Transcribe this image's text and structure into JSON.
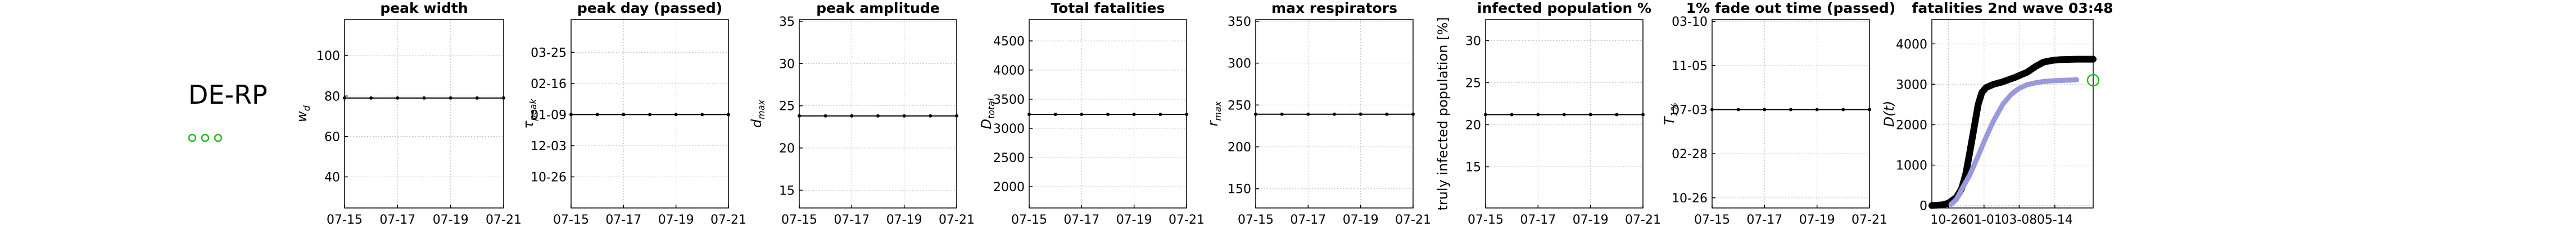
{
  "header": {
    "label": "DE-RP"
  },
  "chart_data": [
    {
      "type": "line",
      "title": "peak width",
      "ylabel": "w",
      "ylabel_sub": "d",
      "grid": true,
      "xlim": [
        15,
        21
      ],
      "xticks": [
        {
          "value": 15,
          "label": "07-15"
        },
        {
          "value": 17,
          "label": "07-17"
        },
        {
          "value": 19,
          "label": "07-19"
        },
        {
          "value": 21,
          "label": "07-21"
        }
      ],
      "ylim": [
        24.6,
        117.8
      ],
      "yticks": [
        40,
        60,
        80,
        100
      ],
      "series": [
        {
          "color": "#000000",
          "marker": true,
          "x": [
            15,
            16,
            17,
            18,
            19,
            20,
            21
          ],
          "values": [
            79,
            79,
            79,
            79,
            79,
            79,
            79
          ]
        }
      ]
    },
    {
      "type": "line",
      "title": "peak day (passed)",
      "ylabel": "τ",
      "ylabel_sub": "peak",
      "grid": true,
      "xlim": [
        15,
        21
      ],
      "xticks": [
        {
          "value": 15,
          "label": "07-15"
        },
        {
          "value": 17,
          "label": "07-17"
        },
        {
          "value": 19,
          "label": "07-19"
        },
        {
          "value": 21,
          "label": "07-21"
        }
      ],
      "ylim": [
        -1,
        5.05
      ],
      "yticks": [
        {
          "value": 0,
          "label": "10-26"
        },
        {
          "value": 1,
          "label": "12-03"
        },
        {
          "value": 2,
          "label": "01-09"
        },
        {
          "value": 3,
          "label": "02-16"
        },
        {
          "value": 4,
          "label": "03-25"
        }
      ],
      "series": [
        {
          "color": "#000000",
          "marker": true,
          "x": [
            15,
            16,
            17,
            18,
            19,
            20,
            21
          ],
          "values": [
            2,
            2,
            2,
            2,
            2,
            2,
            2
          ]
        }
      ]
    },
    {
      "type": "line",
      "title": "peak amplitude",
      "ylabel": "d",
      "ylabel_sub": "max",
      "grid": true,
      "xlim": [
        15,
        21
      ],
      "xticks": [
        {
          "value": 15,
          "label": "07-15"
        },
        {
          "value": 17,
          "label": "07-17"
        },
        {
          "value": 19,
          "label": "07-19"
        },
        {
          "value": 21,
          "label": "07-21"
        }
      ],
      "ylim": [
        12.9,
        35.2
      ],
      "yticks": [
        15,
        20,
        25,
        30,
        35
      ],
      "series": [
        {
          "color": "#000000",
          "marker": true,
          "x": [
            15,
            16,
            17,
            18,
            19,
            20,
            21
          ],
          "values": [
            23.8,
            23.8,
            23.8,
            23.8,
            23.8,
            23.8,
            23.8
          ]
        }
      ]
    },
    {
      "type": "line",
      "title": "Total fatalities",
      "ylabel": "D",
      "ylabel_sub": "total",
      "grid": true,
      "xlim": [
        15,
        21
      ],
      "xticks": [
        {
          "value": 15,
          "label": "07-15"
        },
        {
          "value": 17,
          "label": "07-17"
        },
        {
          "value": 19,
          "label": "07-19"
        },
        {
          "value": 21,
          "label": "07-21"
        }
      ],
      "ylim": [
        1635,
        4865
      ],
      "yticks": [
        2000,
        2500,
        3000,
        3500,
        4000,
        4500
      ],
      "series": [
        {
          "color": "#000000",
          "marker": true,
          "x": [
            15,
            16,
            17,
            18,
            19,
            20,
            21
          ],
          "values": [
            3240,
            3240,
            3240,
            3240,
            3240,
            3240,
            3240
          ]
        }
      ]
    },
    {
      "type": "line",
      "title": "max respirators",
      "ylabel": "r",
      "ylabel_sub": "max",
      "grid": true,
      "xlim": [
        15,
        21
      ],
      "xticks": [
        {
          "value": 15,
          "label": "07-15"
        },
        {
          "value": 17,
          "label": "07-17"
        },
        {
          "value": 19,
          "label": "07-19"
        },
        {
          "value": 21,
          "label": "07-21"
        }
      ],
      "ylim": [
        127,
        352
      ],
      "yticks": [
        150,
        200,
        250,
        300,
        350
      ],
      "series": [
        {
          "color": "#000000",
          "marker": true,
          "x": [
            15,
            16,
            17,
            18,
            19,
            20,
            21
          ],
          "values": [
            239,
            239,
            239,
            239,
            239,
            239,
            239
          ]
        }
      ]
    },
    {
      "type": "line",
      "title": "infected population %",
      "ylabel": "truly infected population [%]",
      "grid": true,
      "xlim": [
        15,
        21
      ],
      "xticks": [
        {
          "value": 15,
          "label": "07-15"
        },
        {
          "value": 17,
          "label": "07-17"
        },
        {
          "value": 19,
          "label": "07-19"
        },
        {
          "value": 21,
          "label": "07-21"
        }
      ],
      "ylim": [
        10.1,
        32.5
      ],
      "yticks": [
        15,
        20,
        25,
        30
      ],
      "series": [
        {
          "color": "#000000",
          "marker": true,
          "x": [
            15,
            16,
            17,
            18,
            19,
            20,
            21
          ],
          "values": [
            21.2,
            21.2,
            21.2,
            21.2,
            21.2,
            21.2,
            21.2
          ]
        }
      ]
    },
    {
      "type": "line",
      "title": "1% fade out time (passed)",
      "ylabel": "T",
      "ylabel_sub": "1%",
      "grid": true,
      "xlim": [
        15,
        21
      ],
      "xticks": [
        {
          "value": 15,
          "label": "07-15"
        },
        {
          "value": 17,
          "label": "07-17"
        },
        {
          "value": 19,
          "label": "07-19"
        },
        {
          "value": 21,
          "label": "07-21"
        }
      ],
      "ylim": [
        -0.23,
        4.04
      ],
      "yticks": [
        {
          "value": 0,
          "label": "10-26"
        },
        {
          "value": 1,
          "label": "02-28"
        },
        {
          "value": 2,
          "label": "07-03"
        },
        {
          "value": 3,
          "label": "11-05"
        },
        {
          "value": 4,
          "label": "03-10"
        }
      ],
      "series": [
        {
          "color": "#000000",
          "marker": true,
          "x": [
            15,
            16,
            17,
            18,
            19,
            20,
            21
          ],
          "values": [
            2,
            2,
            2,
            2,
            2,
            2,
            2
          ]
        }
      ]
    },
    {
      "type": "line",
      "title": "fatalities 2nd wave 03:48",
      "ylabel": "D(t)",
      "grid": true,
      "xlim": [
        -31,
        272
      ],
      "xticks": [
        {
          "value": 0,
          "label": "10-26"
        },
        {
          "value": 67,
          "label": "01-01"
        },
        {
          "value": 133,
          "label": "03-08"
        },
        {
          "value": 200,
          "label": "05-14"
        }
      ],
      "ylim": [
        -60,
        4600
      ],
      "yticks": [
        0,
        1000,
        2000,
        3000,
        4000
      ],
      "series": [
        {
          "color": "#000000",
          "width": 12,
          "x": [
            -31,
            -10,
            0,
            15,
            25,
            33,
            40,
            48,
            56,
            63,
            71,
            85,
            102,
            125,
            148,
            165,
            179,
            195,
            210,
            240,
            272
          ],
          "values": [
            0,
            20,
            60,
            200,
            420,
            800,
            1300,
            1900,
            2500,
            2800,
            2920,
            3000,
            3060,
            3170,
            3300,
            3450,
            3550,
            3590,
            3610,
            3620,
            3620
          ]
        },
        {
          "color": "#9999dd",
          "width": 9,
          "x": [
            5,
            15,
            25,
            40,
            55,
            71,
            85,
            102,
            118,
            133,
            148,
            165,
            180,
            200,
            220,
            241
          ],
          "values": [
            30,
            150,
            400,
            750,
            1200,
            1700,
            2100,
            2500,
            2750,
            2900,
            2990,
            3040,
            3070,
            3090,
            3100,
            3110
          ]
        },
        {
          "color": "#22bb22",
          "scatter": true,
          "x": [
            272
          ],
          "values": [
            3100
          ]
        }
      ]
    }
  ]
}
